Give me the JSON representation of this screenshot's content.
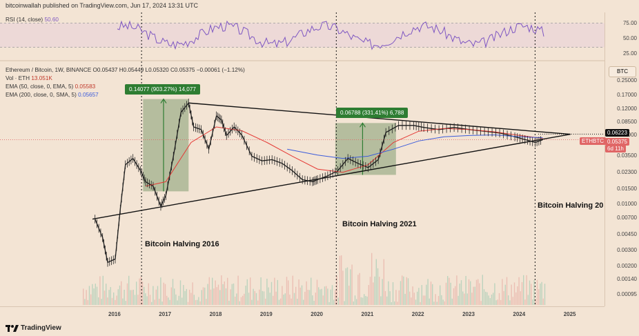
{
  "header": {
    "text": "bitcoinwallah published on TradingView.com, Jun 17, 2024 13:31 UTC"
  },
  "rsi": {
    "label": "RSI (14, close)",
    "value": "50.60",
    "ticks": [
      "75.00",
      "50.00",
      "25.00"
    ],
    "levels": [
      70,
      30
    ],
    "line_color": "#7e57c2"
  },
  "legend": {
    "symbol": "Ethereum / Bitcoin, 1W, BINANCE",
    "ohlc": "O0.05437 H0.05449 L0.05320 C0.05375 −0.00061 (−1.12%)",
    "vol_label": "Vol · ETH",
    "vol_value": "13.051K",
    "ema50_label": "EMA (50, close, 0, EMA, 5)",
    "ema50_value": "0.05583",
    "ema200_label": "EMA (200, close, 0, SMA, 5)",
    "ema200_value": "0.05657"
  },
  "price_axis": {
    "currency_button": "BTC",
    "ticks": [
      "0.25000",
      "0.17000",
      "0.12000",
      "0.08500",
      "0.06000",
      "0.03500",
      "0.02300",
      "0.01500",
      "0.01000",
      "0.00700",
      "0.00450",
      "0.00300",
      "0.00200",
      "0.00140",
      "0.00095"
    ],
    "last_price_tag": "0.06223",
    "symbol_tag": "ETHBTC",
    "current_tag": "0.05375",
    "countdown_tag": "6d 11h"
  },
  "time_axis": {
    "ticks": [
      "2016",
      "2017",
      "2018",
      "2019",
      "2020",
      "2021",
      "2022",
      "2023",
      "2024",
      "2025"
    ]
  },
  "annotations": {
    "callout_2016": "0.14077 (903.27%) 14,077",
    "callout_2021": "0.06788 (331.41%) 6,788",
    "halving_2016": "Bitcoin Halving 2016",
    "halving_2021": "Bitcoin Halving 2021",
    "halving_2024": "Bitcoin Halving 20"
  },
  "footer": {
    "brand": "TradingView"
  },
  "chart_data": {
    "type": "line",
    "title": "Ethereum / Bitcoin, 1W, BINANCE",
    "scale": "log",
    "ylim": [
      0.0008,
      0.3
    ],
    "colors": {
      "price": "#1a1a1a",
      "ema50": "#e53935",
      "ema200": "#3b5bdb",
      "rise_box": "#6b8f5e"
    },
    "series": [
      {
        "name": "ETHBTC",
        "x": [
          2015.6,
          2015.75,
          2015.85,
          2016.0,
          2016.1,
          2016.2,
          2016.35,
          2016.5,
          2016.6,
          2016.75,
          2016.9,
          2017.0,
          2017.15,
          2017.3,
          2017.45,
          2017.55,
          2017.7,
          2017.85,
          2018.0,
          2018.1,
          2018.2,
          2018.35,
          2018.5,
          2018.7,
          2018.9,
          2019.1,
          2019.3,
          2019.5,
          2019.7,
          2019.9,
          2020.0,
          2020.2,
          2020.4,
          2020.6,
          2020.8,
          2021.0,
          2021.2,
          2021.35,
          2021.6,
          2021.9,
          2022.1,
          2022.4,
          2022.7,
          2023.0,
          2023.3,
          2023.6,
          2023.9,
          2024.1,
          2024.3,
          2024.45
        ],
        "values": [
          0.0068,
          0.0042,
          0.0022,
          0.0024,
          0.0088,
          0.028,
          0.033,
          0.024,
          0.018,
          0.016,
          0.0095,
          0.0125,
          0.035,
          0.11,
          0.14,
          0.075,
          0.07,
          0.042,
          0.1,
          0.09,
          0.06,
          0.075,
          0.061,
          0.035,
          0.031,
          0.032,
          0.029,
          0.024,
          0.019,
          0.018,
          0.019,
          0.021,
          0.024,
          0.033,
          0.029,
          0.026,
          0.032,
          0.065,
          0.078,
          0.078,
          0.074,
          0.07,
          0.074,
          0.07,
          0.067,
          0.064,
          0.058,
          0.054,
          0.05,
          0.0537
        ]
      },
      {
        "name": "EMA (50, close, 0, EMA, 5)",
        "x": [
          2016.6,
          2017.0,
          2017.5,
          2018.0,
          2018.5,
          2019.0,
          2019.5,
          2020.0,
          2020.5,
          2021.0,
          2021.5,
          2022.0,
          2022.5,
          2023.0,
          2023.5,
          2024.0,
          2024.45
        ],
        "values": [
          0.016,
          0.018,
          0.05,
          0.075,
          0.068,
          0.05,
          0.035,
          0.025,
          0.023,
          0.028,
          0.05,
          0.067,
          0.072,
          0.07,
          0.066,
          0.06,
          0.0558
        ]
      },
      {
        "name": "EMA (200, close, 0, SMA, 5)",
        "x": [
          2019.4,
          2020.0,
          2020.5,
          2021.0,
          2021.5,
          2022.0,
          2022.5,
          2023.0,
          2023.5,
          2024.0,
          2024.45
        ],
        "values": [
          0.042,
          0.036,
          0.033,
          0.035,
          0.042,
          0.052,
          0.058,
          0.06,
          0.061,
          0.058,
          0.0566
        ]
      }
    ],
    "triangle": {
      "upper": [
        [
          2017.45,
          0.14
        ],
        [
          2025.0,
          0.062
        ]
      ],
      "lower": [
        [
          2015.55,
          0.0068
        ],
        [
          2025.0,
          0.062
        ]
      ]
    },
    "rise_boxes": [
      {
        "x": [
          2016.55,
          2017.45
        ],
        "low": 0.014,
        "high": 0.155,
        "label": "0.14077 (903.27%) 14,077"
      },
      {
        "x": [
          2020.35,
          2021.55
        ],
        "low": 0.0215,
        "high": 0.083,
        "label": "0.06788 (331.41%) 6,788"
      }
    ],
    "halvings": [
      2016.52,
      2020.37,
      2024.3
    ]
  }
}
